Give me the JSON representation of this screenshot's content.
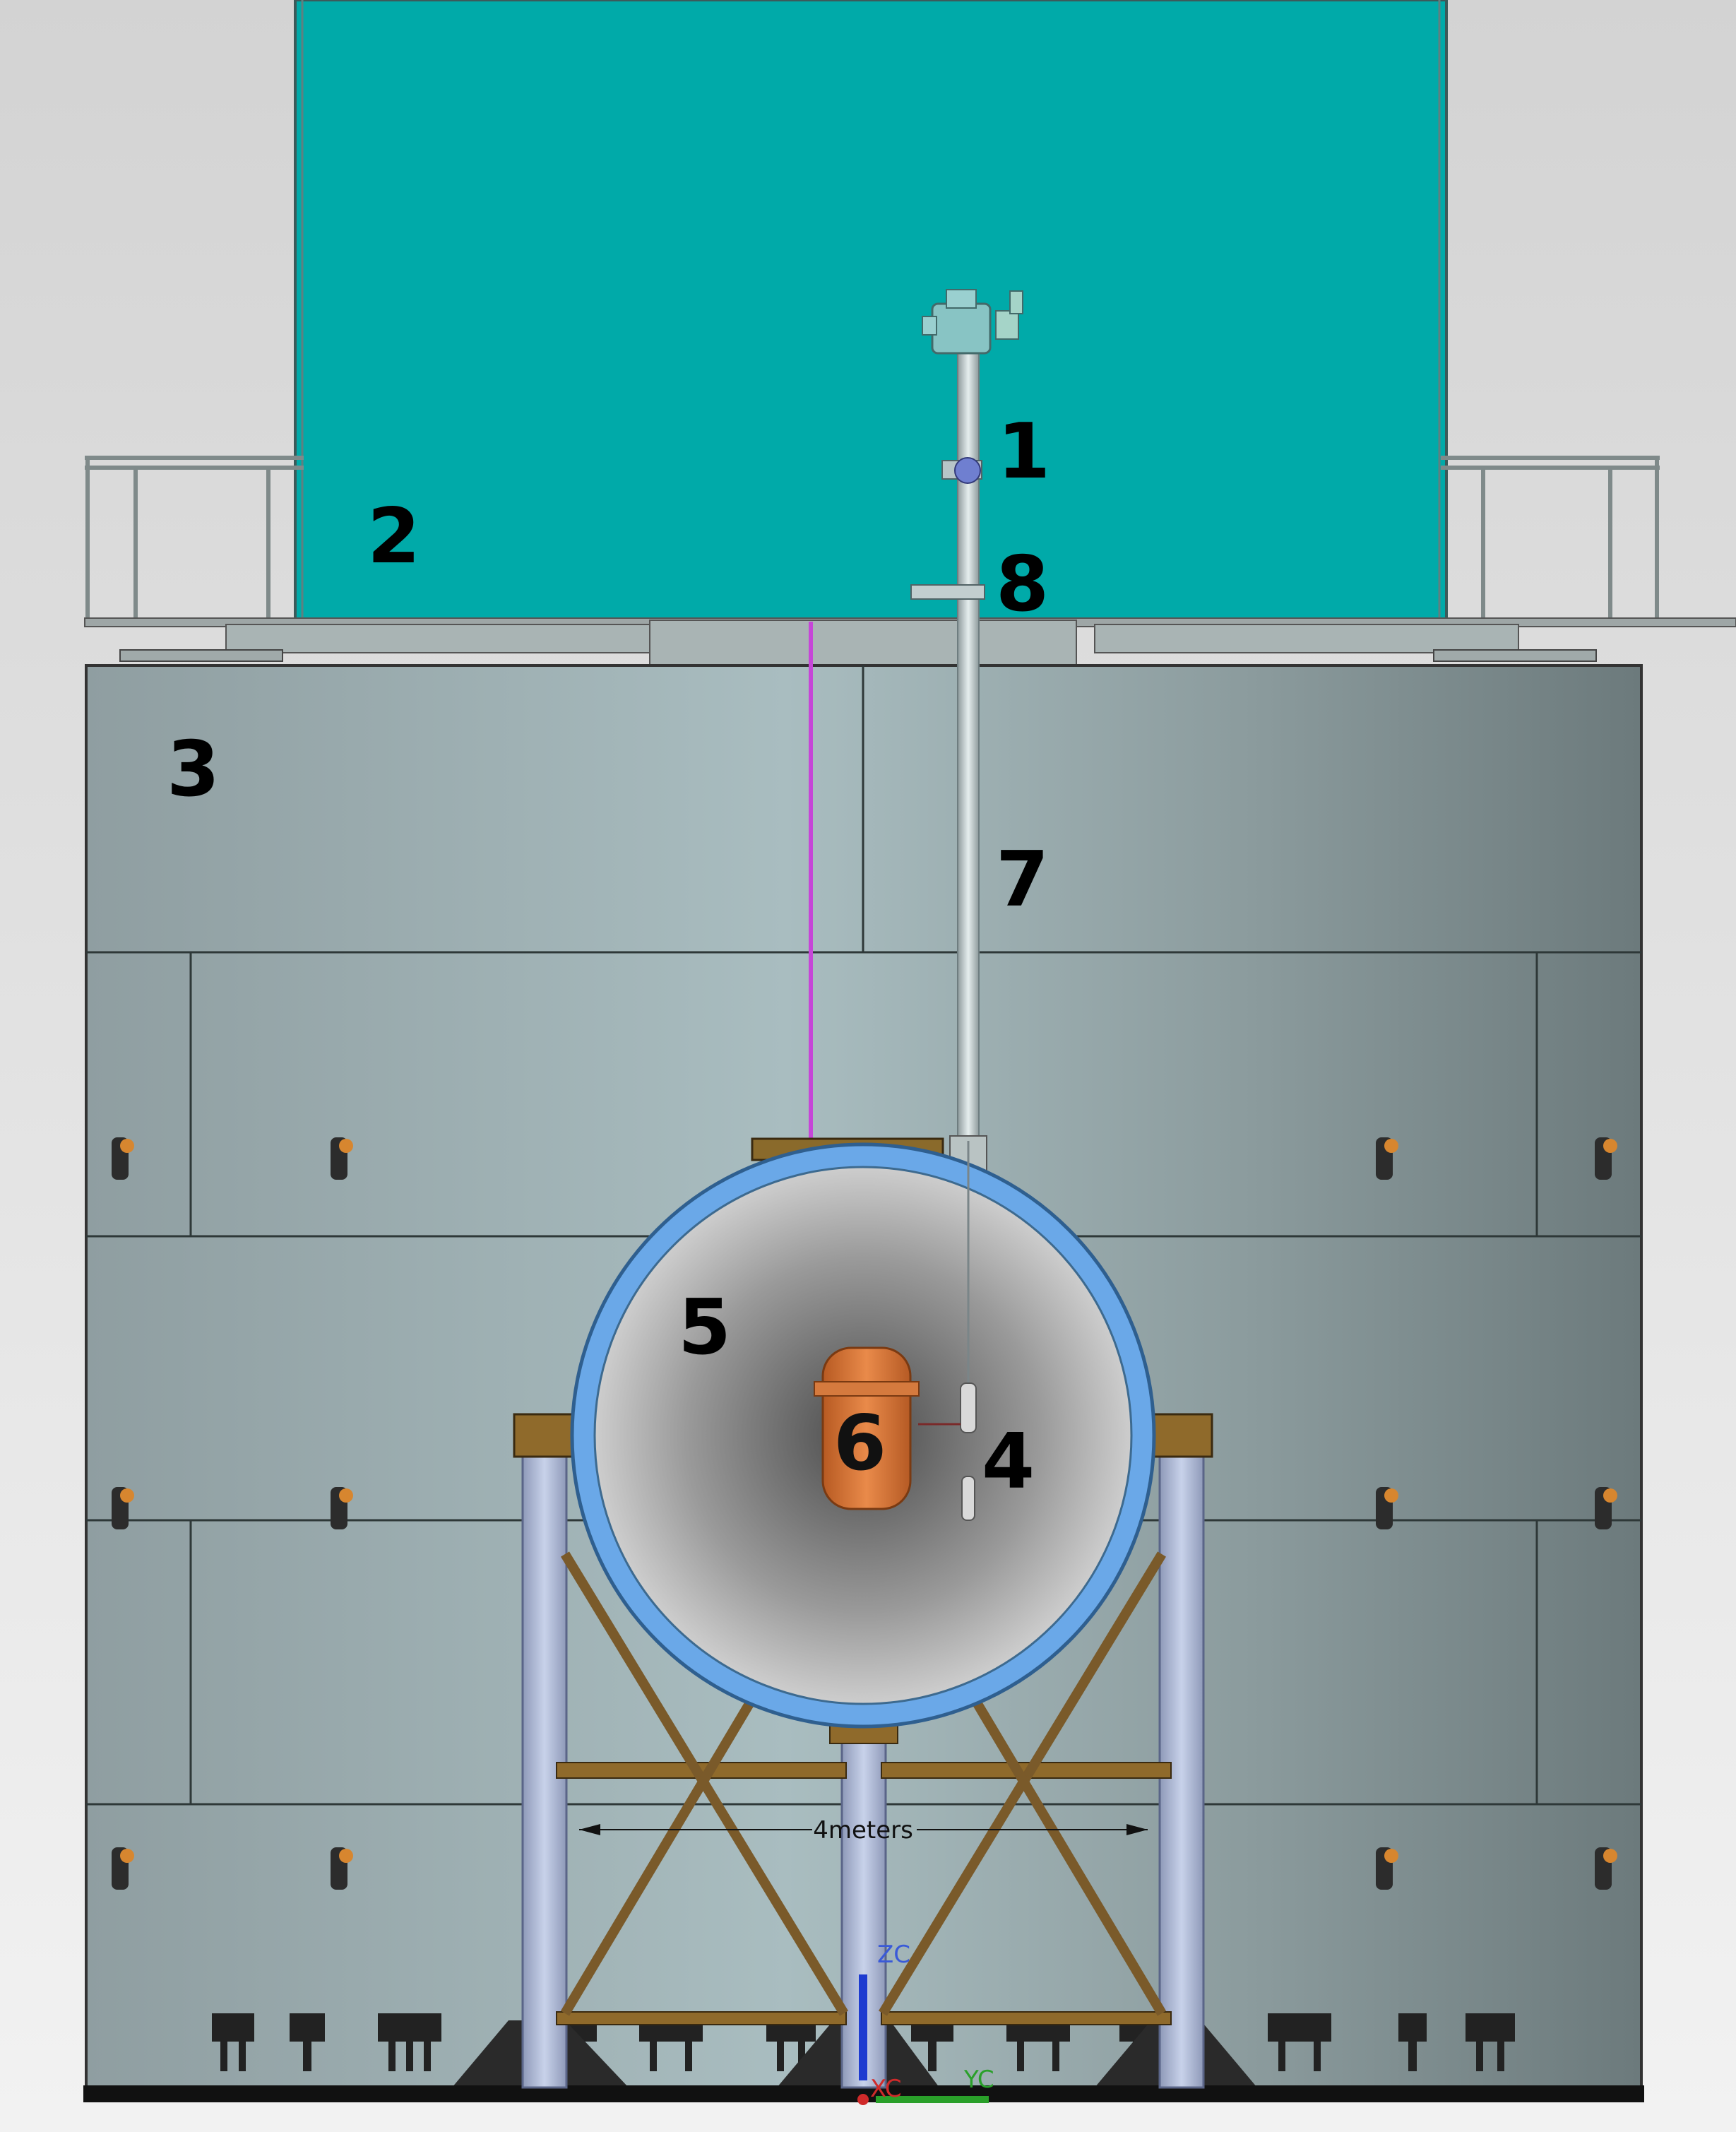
{
  "labels": {
    "l1": "1",
    "l2": "2",
    "l3": "3",
    "l4": "4",
    "l5": "5",
    "l6": "6",
    "l7": "7",
    "l8": "8"
  },
  "dimension": {
    "text": "4meters"
  },
  "axes": {
    "z": "ZC",
    "y": "YC",
    "x": "XC"
  },
  "colors": {
    "water_tank": "#00aaa9",
    "shield": "#a3b5b7",
    "cryostat_ring": "#6aa8e8",
    "copper": "#d9753a",
    "support": "#8a6a3a",
    "pipe_magenta": "#c646d8"
  }
}
